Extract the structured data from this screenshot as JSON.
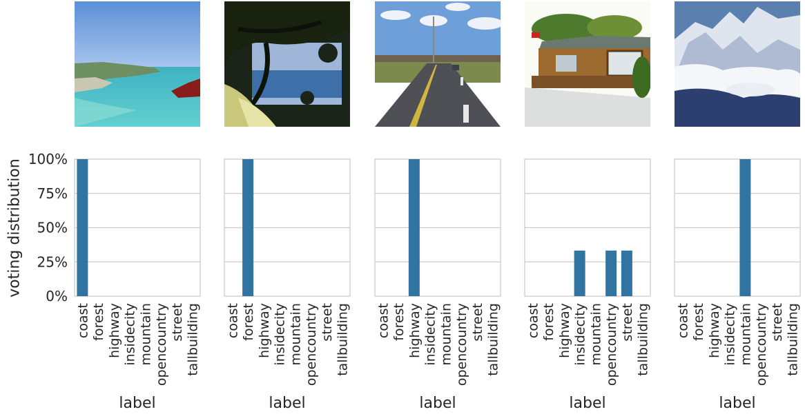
{
  "figure": {
    "y_axis_label": "voting distribution",
    "x_axis_label": "label"
  },
  "chart_data": [
    {
      "type": "bar",
      "image_subject": "coast",
      "categories": [
        "coast",
        "forest",
        "highway",
        "insidecity",
        "mountain",
        "opencountry",
        "street",
        "tallbuilding"
      ],
      "values": [
        1.0,
        0,
        0,
        0,
        0,
        0,
        0,
        0
      ],
      "xlabel": "label",
      "ylabel": "voting distribution",
      "ylim": [
        0,
        1
      ],
      "yticks": [
        "0%",
        "25%",
        "50%",
        "75%",
        "100%"
      ],
      "grid": true,
      "bar_color": "#3274a1"
    },
    {
      "type": "bar",
      "image_subject": "forest",
      "categories": [
        "coast",
        "forest",
        "highway",
        "insidecity",
        "mountain",
        "opencountry",
        "street",
        "tallbuilding"
      ],
      "values": [
        0,
        1.0,
        0,
        0,
        0,
        0,
        0,
        0
      ],
      "xlabel": "label",
      "ylim": [
        0,
        1
      ],
      "grid": true,
      "bar_color": "#3274a1"
    },
    {
      "type": "bar",
      "image_subject": "highway",
      "categories": [
        "coast",
        "forest",
        "highway",
        "insidecity",
        "mountain",
        "opencountry",
        "street",
        "tallbuilding"
      ],
      "values": [
        0,
        0,
        1.0,
        0,
        0,
        0,
        0,
        0
      ],
      "xlabel": "label",
      "ylim": [
        0,
        1
      ],
      "grid": true,
      "bar_color": "#3274a1"
    },
    {
      "type": "bar",
      "image_subject": "house",
      "categories": [
        "coast",
        "forest",
        "highway",
        "insidecity",
        "mountain",
        "opencountry",
        "street",
        "tallbuilding"
      ],
      "values": [
        0,
        0,
        0,
        0.333,
        0,
        0.333,
        0.333,
        0
      ],
      "xlabel": "label",
      "ylim": [
        0,
        1
      ],
      "grid": true,
      "bar_color": "#3274a1"
    },
    {
      "type": "bar",
      "image_subject": "mountain",
      "categories": [
        "coast",
        "forest",
        "highway",
        "insidecity",
        "mountain",
        "opencountry",
        "street",
        "tallbuilding"
      ],
      "values": [
        0,
        0,
        0,
        0,
        1.0,
        0,
        0,
        0
      ],
      "xlabel": "label",
      "ylim": [
        0,
        1
      ],
      "grid": true,
      "bar_color": "#3274a1"
    }
  ],
  "style": {
    "grid_color": "#cccccc",
    "frame_color": "#cccccc",
    "text_color": "#262626"
  }
}
